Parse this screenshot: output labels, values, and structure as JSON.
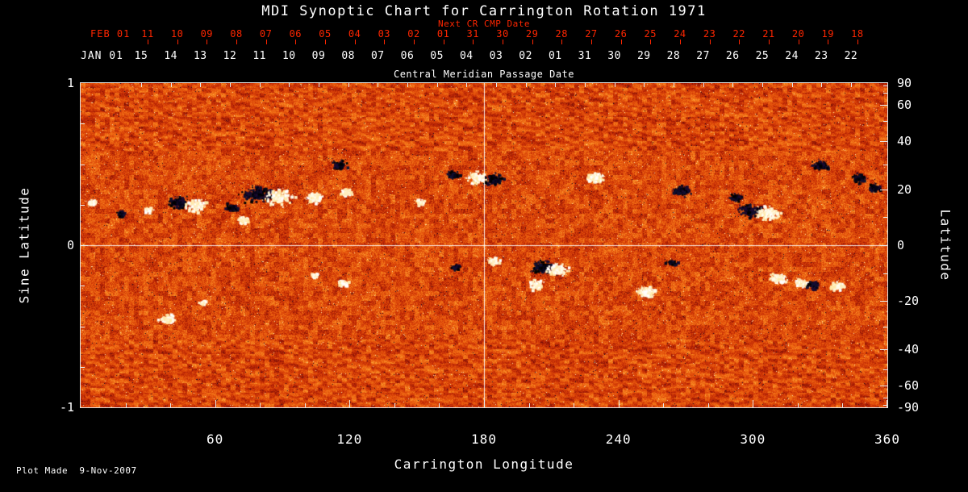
{
  "title": "MDI Synoptic Chart for Carrington Rotation 1971",
  "top_axis": {
    "next_cr_label": "Next CR CMP Date",
    "feb_anchor": "FEB 01",
    "red_ticks": [
      "11",
      "10",
      "09",
      "08",
      "07",
      "06",
      "05",
      "04",
      "03",
      "02",
      "01",
      "31",
      "30",
      "29",
      "28",
      "27",
      "26",
      "25",
      "24",
      "23",
      "22",
      "21",
      "20",
      "19",
      "18"
    ],
    "jan_anchor": "JAN 01",
    "white_ticks": [
      "15",
      "14",
      "13",
      "12",
      "11",
      "10",
      "09",
      "08",
      "07",
      "06",
      "05",
      "04",
      "03",
      "02",
      "01",
      "31",
      "30",
      "29",
      "28",
      "27",
      "26",
      "25",
      "24",
      "23",
      "22"
    ],
    "cmp_label": "Central Meridian Passage Date"
  },
  "x_axis": {
    "label": "Carrington Longitude",
    "ticks": [
      60,
      120,
      180,
      240,
      300,
      360
    ],
    "range": [
      0,
      360
    ]
  },
  "left_axis": {
    "label": "Sine Latitude",
    "ticks": [
      1,
      0,
      -1
    ],
    "range": [
      -1,
      1
    ]
  },
  "right_axis": {
    "label": "Latitude",
    "ticks": [
      90,
      60,
      40,
      20,
      0,
      -20,
      -40,
      -60,
      -90
    ]
  },
  "footer": "Plot Made  9-Nov-2007",
  "colors": {
    "background": "#000000",
    "axis": "#e8e8e8",
    "red_axis": "#ff2600",
    "text": "#ffffff"
  },
  "chart_data": {
    "type": "heatmap",
    "title": "MDI Synoptic Chart for Carrington Rotation 1971",
    "xlabel": "Carrington Longitude",
    "ylabel_left": "Sine Latitude",
    "ylabel_right": "Latitude",
    "x_range": [
      0,
      360
    ],
    "x_ticks": [
      60,
      120,
      180,
      240,
      300,
      360
    ],
    "y_range_sine": [
      -1,
      1
    ],
    "left_ticks_sine": [
      1,
      0,
      -1
    ],
    "right_ticks_deg": [
      90,
      60,
      40,
      20,
      0,
      -20,
      -40,
      -60,
      -90
    ],
    "crosshair": {
      "longitude": 180,
      "sine_latitude": 0
    },
    "grid": false,
    "legend": "none",
    "description": "Full-disk MDI magnetic flux synoptic map: mottled orange/red background noise with white (positive polarity) and dark navy/black (negative polarity) active-region flux concentrations in two activity belts",
    "palette_stops": [
      "#0f0828",
      "#5a0808",
      "#b92305",
      "#e14b0a",
      "#f57819",
      "#fcaa3c",
      "#fff0be"
    ],
    "active_regions": [
      {
        "lon": 47,
        "slat": 0.27,
        "type": "bipolar-dw",
        "r": 15,
        "n": 240
      },
      {
        "lon": 67,
        "slat": 0.24,
        "type": "dark",
        "r": 8,
        "n": 90
      },
      {
        "lon": 72,
        "slat": 0.16,
        "type": "white",
        "r": 7,
        "n": 70
      },
      {
        "lon": 83,
        "slat": 0.32,
        "type": "bipolar-dw",
        "r": 20,
        "n": 420
      },
      {
        "lon": 104,
        "slat": 0.3,
        "type": "white",
        "r": 10,
        "n": 120
      },
      {
        "lon": 115,
        "slat": 0.5,
        "type": "dark",
        "r": 9,
        "n": 110
      },
      {
        "lon": 118,
        "slat": 0.33,
        "type": "white",
        "r": 8,
        "n": 90
      },
      {
        "lon": 151,
        "slat": 0.27,
        "type": "white",
        "r": 6,
        "n": 50
      },
      {
        "lon": 166,
        "slat": 0.44,
        "type": "dark",
        "r": 7,
        "n": 70
      },
      {
        "lon": 180,
        "slat": 0.42,
        "type": "bipolar-wd",
        "r": 14,
        "n": 260
      },
      {
        "lon": 229,
        "slat": 0.42,
        "type": "white",
        "r": 11,
        "n": 160
      },
      {
        "lon": 268,
        "slat": 0.34,
        "type": "dark",
        "r": 11,
        "n": 150
      },
      {
        "lon": 292,
        "slat": 0.3,
        "type": "dark",
        "r": 8,
        "n": 80
      },
      {
        "lon": 302,
        "slat": 0.22,
        "type": "bipolar-dw",
        "r": 16,
        "n": 300
      },
      {
        "lon": 330,
        "slat": 0.5,
        "type": "dark",
        "r": 10,
        "n": 130
      },
      {
        "lon": 347,
        "slat": 0.42,
        "type": "dark",
        "r": 9,
        "n": 100
      },
      {
        "lon": 354,
        "slat": 0.36,
        "type": "dark",
        "r": 8,
        "n": 80
      },
      {
        "lon": 5,
        "slat": 0.27,
        "type": "white",
        "r": 6,
        "n": 50
      },
      {
        "lon": 30,
        "slat": 0.22,
        "type": "white",
        "r": 6,
        "n": 50
      },
      {
        "lon": 18,
        "slat": 0.2,
        "type": "dark",
        "r": 5,
        "n": 35
      },
      {
        "lon": 209,
        "slat": -0.13,
        "type": "bipolar-dw",
        "r": 15,
        "n": 280
      },
      {
        "lon": 203,
        "slat": -0.24,
        "type": "white",
        "r": 9,
        "n": 110
      },
      {
        "lon": 184,
        "slat": -0.09,
        "type": "white",
        "r": 7,
        "n": 70
      },
      {
        "lon": 167,
        "slat": -0.13,
        "type": "dark",
        "r": 6,
        "n": 50
      },
      {
        "lon": 252,
        "slat": -0.28,
        "type": "white",
        "r": 11,
        "n": 150
      },
      {
        "lon": 263,
        "slat": -0.1,
        "type": "dark",
        "r": 7,
        "n": 60
      },
      {
        "lon": 311,
        "slat": -0.2,
        "type": "white",
        "r": 10,
        "n": 130
      },
      {
        "lon": 324,
        "slat": -0.23,
        "type": "bipolar-wd",
        "r": 10,
        "n": 130
      },
      {
        "lon": 337,
        "slat": -0.25,
        "type": "white",
        "r": 8,
        "n": 90
      },
      {
        "lon": 117,
        "slat": -0.23,
        "type": "white",
        "r": 7,
        "n": 70
      },
      {
        "lon": 104,
        "slat": -0.18,
        "type": "white",
        "r": 5,
        "n": 40
      },
      {
        "lon": 38,
        "slat": -0.45,
        "type": "white",
        "r": 9,
        "n": 110
      },
      {
        "lon": 54,
        "slat": -0.35,
        "type": "white",
        "r": 5,
        "n": 40
      }
    ]
  }
}
